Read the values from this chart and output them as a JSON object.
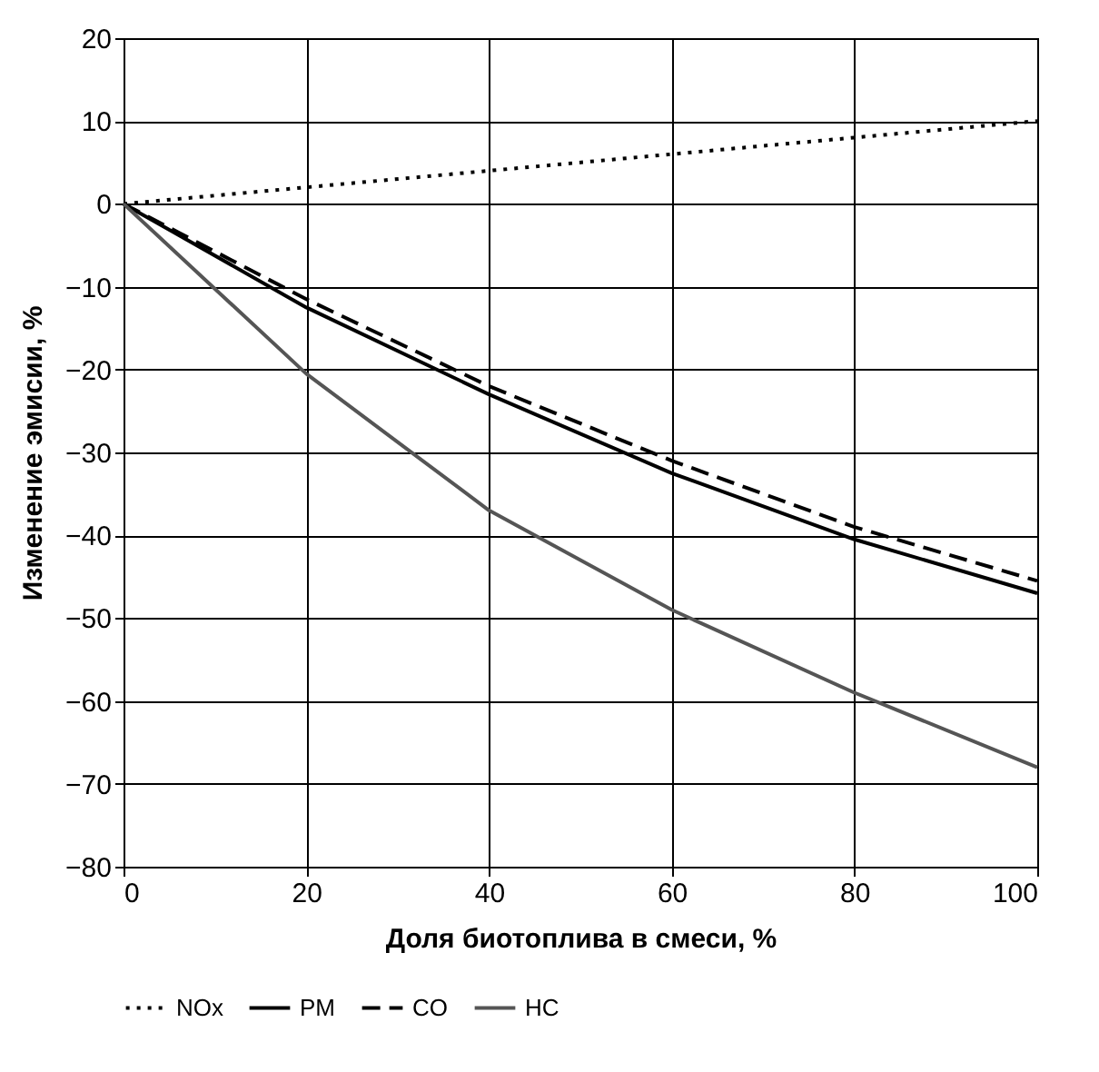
{
  "chart_data": {
    "type": "line",
    "xlabel": "Доля биотоплива в смеси, %",
    "ylabel": "Изменение эмисии, %",
    "x": [
      0,
      20,
      40,
      60,
      80,
      100
    ],
    "series": [
      {
        "name": "NOx",
        "color": "#000000",
        "line_style": "dotted",
        "values": [
          0,
          2,
          4,
          6,
          8,
          10
        ]
      },
      {
        "name": "PM",
        "color": "#000000",
        "line_style": "solid",
        "values": [
          0,
          -12.5,
          -23,
          -32.5,
          -40.5,
          -47
        ]
      },
      {
        "name": "CO",
        "color": "#000000",
        "line_style": "dashed",
        "values": [
          0,
          -11.5,
          -22,
          -31,
          -39,
          -45.5
        ]
      },
      {
        "name": "HC",
        "color": "#555555",
        "line_style": "solid",
        "values": [
          0,
          -20.5,
          -37,
          -49,
          -59,
          -68
        ]
      }
    ],
    "xlim": [
      0,
      100
    ],
    "xticks": [
      0,
      20,
      40,
      60,
      80,
      100
    ],
    "ylim": [
      -80,
      20
    ],
    "yticks": [
      -80,
      -70,
      -60,
      -50,
      -40,
      -30,
      -20,
      -10,
      0,
      10,
      20
    ],
    "grid": true,
    "legend": "bottom"
  }
}
